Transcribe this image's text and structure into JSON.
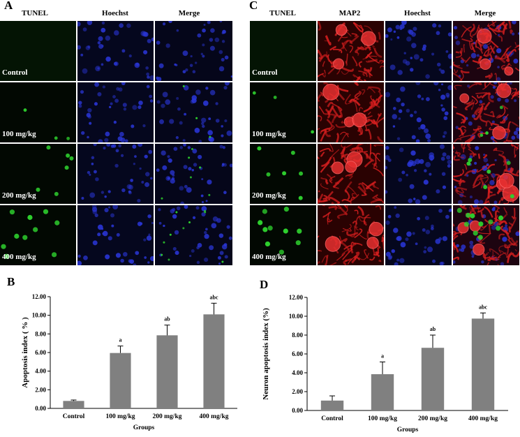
{
  "panel_a": {
    "letter": "A",
    "columns": [
      "TUNEL",
      "Hoechst",
      "Merge"
    ],
    "rows": [
      "Control",
      "100 mg/kg",
      "200 mg/kg",
      "400 mg/kg"
    ]
  },
  "panel_c": {
    "letter": "C",
    "columns": [
      "TUNEL",
      "MAP2",
      "Hoechst",
      "Merge"
    ],
    "rows": [
      "Control",
      "100 mg/kg",
      "200 mg/kg",
      "400 mg/kg"
    ]
  },
  "panel_b": {
    "letter": "B"
  },
  "panel_d": {
    "letter": "D"
  },
  "colors": {
    "tunel": "#2ed12e",
    "hoechst": "#2a36d8",
    "map2": "#d81f1f",
    "bar": "#808080",
    "background": "#050510"
  },
  "chart_data": [
    {
      "type": "bar",
      "categories": [
        "Control",
        "100 mg/kg",
        "200 mg/kg",
        "400 mg/kg"
      ],
      "values": [
        0.8,
        5.95,
        7.85,
        10.1
      ],
      "errors": [
        0.1,
        0.75,
        1.1,
        1.2
      ],
      "annotations": [
        "",
        "a",
        "ab",
        "abc"
      ],
      "title": "",
      "xlabel": "Groups",
      "ylabel": "Apoptosis index ( % )",
      "ylim": [
        0,
        12
      ],
      "yticks": [
        "0.00",
        "2.00",
        "4.00",
        "6.00",
        "8.00",
        "10.00",
        "12.00"
      ],
      "grid": false
    },
    {
      "type": "bar",
      "categories": [
        "Control",
        "100 mg/kg",
        "200 mg/kg",
        "400 mg/kg"
      ],
      "values": [
        1.05,
        3.85,
        6.65,
        9.75
      ],
      "errors": [
        0.5,
        1.3,
        1.35,
        0.6
      ],
      "annotations": [
        "",
        "a",
        "ab",
        "abc"
      ],
      "title": "",
      "xlabel": "Groups",
      "ylabel": "Neuron apoptosis index (%)",
      "ylim": [
        0,
        12
      ],
      "yticks": [
        "0.00",
        "2.00",
        "4.00",
        "6.00",
        "8.00",
        "10.00",
        "12.00"
      ],
      "grid": false
    }
  ]
}
